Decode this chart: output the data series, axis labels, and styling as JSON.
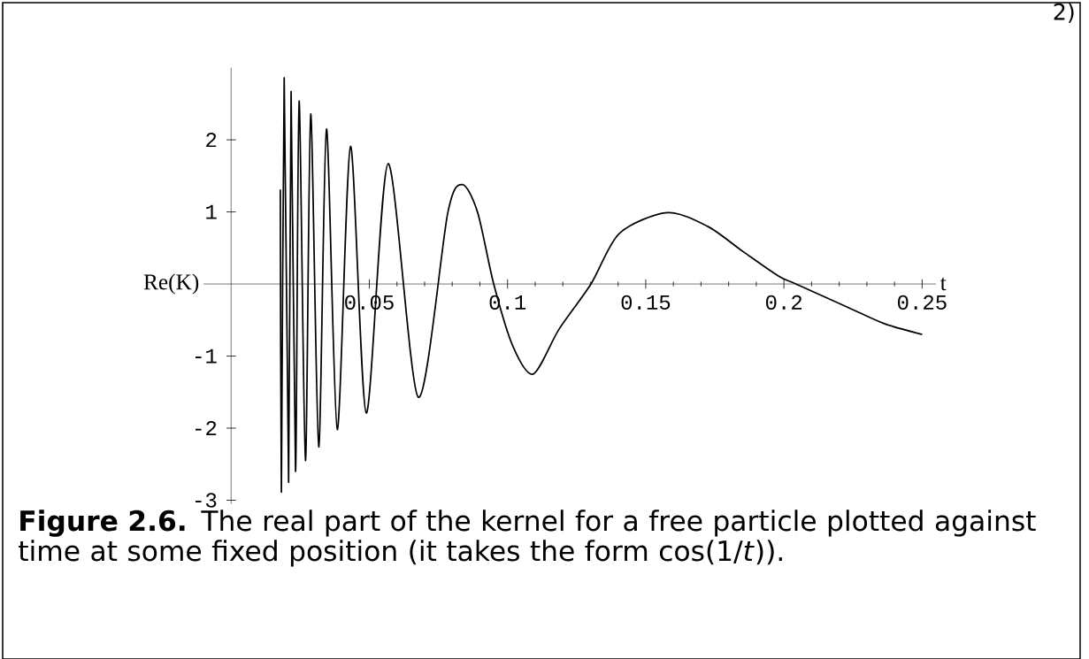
{
  "chart_data": {
    "type": "line",
    "xlabel": "t",
    "ylabel": "Re(K)",
    "color": "#000000",
    "x": [
      0.0178,
      0.0182,
      0.0192,
      0.0208,
      0.0217,
      0.0233,
      0.0246,
      0.0269,
      0.0288,
      0.0317,
      0.0345,
      0.0384,
      0.0432,
      0.0489,
      0.0568,
      0.0677,
      0.0784,
      0.0837,
      0.0892,
      0.095,
      0.102,
      0.1093,
      0.1186,
      0.1302,
      0.1404,
      0.1577,
      0.1724,
      0.1852,
      0.198,
      0.2043,
      0.2235,
      0.2363,
      0.25
    ],
    "values": [
      1.31,
      -2.88,
      2.86,
      -2.75,
      2.67,
      -2.6,
      2.54,
      -2.45,
      2.36,
      -2.26,
      2.15,
      -2.02,
      1.91,
      -1.79,
      1.67,
      -1.57,
      0.99,
      1.38,
      0.99,
      0,
      -0.87,
      -1.25,
      -0.63,
      0,
      0.7,
      0.99,
      0.8,
      0.45,
      0.11,
      0,
      -0.33,
      -0.55,
      -0.7
    ],
    "xlim": [
      -0.01,
      0.255
    ],
    "ylim": [
      -3.05,
      3.0
    ],
    "xticks": [
      0.05,
      0.1,
      0.15,
      0.2,
      0.25
    ],
    "yticks": [
      -3,
      -2,
      -1,
      1,
      2
    ],
    "annotations": [
      "2)",
      "**Figure 2.6.** The real part of the kernel for a free particle plotted against time at some fixed position (it takes the form cos(1/*t*))."
    ]
  }
}
